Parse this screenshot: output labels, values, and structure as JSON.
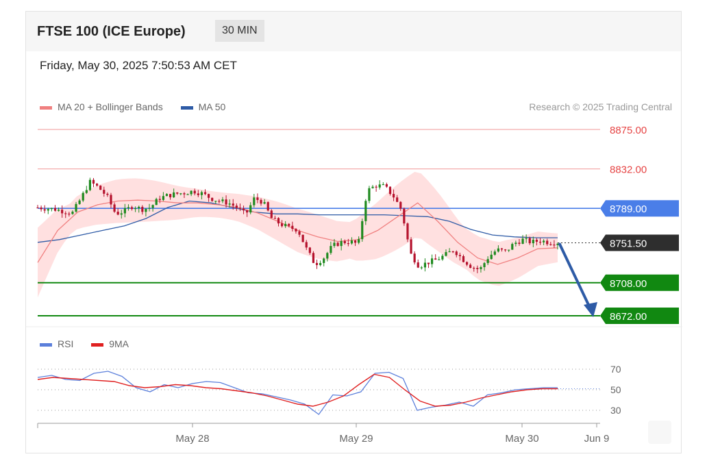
{
  "header": {
    "title": "FTSE 100 (ICE Europe)",
    "timeframe": "30 MIN",
    "datetime": "Friday, May 30, 2025 7:50:53 AM CET"
  },
  "legend_main": [
    {
      "label": "MA 20 + Bollinger Bands",
      "color": "#f08080"
    },
    {
      "label": "MA 50",
      "color": "#2e5ba6"
    }
  ],
  "credit": "Research © 2025 Trading Central",
  "legend_rsi": [
    {
      "label": "RSI",
      "color": "#5b7fdb"
    },
    {
      "label": "9MA",
      "color": "#e02020"
    }
  ],
  "colors": {
    "resistance": "#e64545",
    "pivot": "#4a7ee8",
    "support": "#118811",
    "current": "#2e2e2e",
    "arrow": "#2e5ba6",
    "bull_candle": "#1f8a1f",
    "bear_candle": "#b5122d",
    "band_fill": "#ffd5d5"
  },
  "chart_data": [
    {
      "type": "candlestick",
      "title": "FTSE 100 (ICE Europe)",
      "timeframe": "30 MIN",
      "ylim": [
        8665,
        8890
      ],
      "x_ticks": [
        "May 28",
        "May 29",
        "May 30",
        "Jun 9"
      ],
      "levels": [
        {
          "value": 8875.0,
          "label": "8875.00",
          "kind": "resistance"
        },
        {
          "value": 8832.0,
          "label": "8832.00",
          "kind": "resistance"
        },
        {
          "value": 8789.0,
          "label": "8789.00",
          "kind": "pivot"
        },
        {
          "value": 8751.5,
          "label": "8751.50",
          "kind": "current"
        },
        {
          "value": 8708.0,
          "label": "8708.00",
          "kind": "support"
        },
        {
          "value": 8672.0,
          "label": "8672.00",
          "kind": "support"
        }
      ],
      "price_path": [
        8790,
        8789,
        8788,
        8786,
        8784,
        8800,
        8818,
        8812,
        8802,
        8783,
        8786,
        8792,
        8788,
        8790,
        8800,
        8803,
        8805,
        8806,
        8808,
        8805,
        8800,
        8797,
        8795,
        8790,
        8782,
        8800,
        8796,
        8778,
        8772,
        8768,
        8766,
        8745,
        8728,
        8735,
        8748,
        8752,
        8753,
        8750,
        8808,
        8814,
        8813,
        8803,
        8787,
        8740,
        8726,
        8730,
        8733,
        8738,
        8744,
        8734,
        8726,
        8722,
        8736,
        8744,
        8742,
        8751,
        8755,
        8752,
        8754,
        8752,
        8752
      ],
      "ma20": [
        8730,
        8765,
        8785,
        8793,
        8797,
        8798,
        8797,
        8795,
        8795,
        8793,
        8790,
        8784,
        8775,
        8765,
        8758,
        8753,
        8755,
        8765,
        8780,
        8795,
        8775,
        8752,
        8735,
        8728,
        8735,
        8745,
        8746
      ],
      "ma50": [
        8752,
        8755,
        8760,
        8765,
        8770,
        8778,
        8790,
        8797,
        8795,
        8790,
        8785,
        8783,
        8783,
        8782,
        8782,
        8782,
        8782,
        8781,
        8780,
        8775,
        8766,
        8760,
        8758,
        8757,
        8757
      ],
      "forecast": {
        "from": 8751.5,
        "to": 8672.0
      }
    },
    {
      "type": "line",
      "title": "RSI",
      "ylim": [
        20,
        80
      ],
      "y_ticks": [
        70,
        50,
        30
      ],
      "series": [
        {
          "name": "RSI",
          "values": [
            62,
            64,
            60,
            59,
            66,
            68,
            63,
            52,
            48,
            55,
            52,
            56,
            58,
            57,
            52,
            47,
            46,
            43,
            40,
            36,
            26,
            45,
            44,
            48,
            66,
            67,
            61,
            30,
            33,
            35,
            38,
            34,
            45,
            47,
            50,
            51,
            52,
            52
          ]
        },
        {
          "name": "9MA",
          "values": [
            60,
            62,
            61,
            60,
            59,
            58,
            54,
            52,
            53,
            55,
            54,
            52,
            51,
            49,
            47,
            44,
            40,
            36,
            34,
            38,
            44,
            55,
            65,
            62,
            50,
            39,
            34,
            35,
            38,
            42,
            45,
            48,
            50,
            51,
            51
          ]
        }
      ]
    }
  ]
}
